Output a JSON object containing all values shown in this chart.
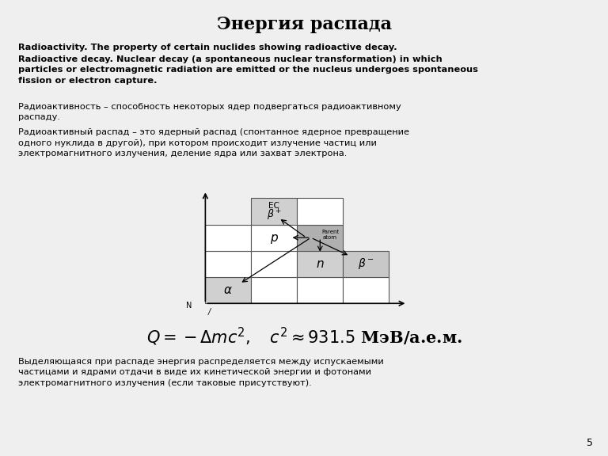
{
  "title": "Энергия распада",
  "bg_color": "#efefef",
  "text_color": "#000000",
  "line1_en": "Radioactivity. The property of certain nuclides showing radioactive decay.",
  "line2_en": "Radioactive decay. Nuclear decay (a spontaneous nuclear transformation) in which\nparticles or electromagnetic radiation are emitted or the nucleus undergoes spontaneous\nfission or electron capture.",
  "line1_ru": "Радиоактивность – способность некоторых ядер подвергаться радиоактивному\nраспаду.",
  "line2_ru": "Радиоактивный распад – это ядерный распад (спонтанное ядерное превращение\nодного нуклида в другой), при котором происходит излучение частиц или\nэлектромагнитного излучения, деление ядра или захват электрона.",
  "bottom_text": "Выделяющаяся при распаде энергия распределяется между испускаемыми\nчастицами и ядрами отдачи в виде их кинетической энергии и фотонами\nэлектромагнитного излучения (если таковые присутствуют).",
  "page_num": "5",
  "cell_alpha": "#d0d0d0",
  "cell_white": "#ffffff",
  "cell_light": "#d0d0d0",
  "cell_parent": "#b0b0b0",
  "cell_beta_minus": "#c8c8c8",
  "cell_ec": "#d0d0d0",
  "edge_color": "#555555"
}
